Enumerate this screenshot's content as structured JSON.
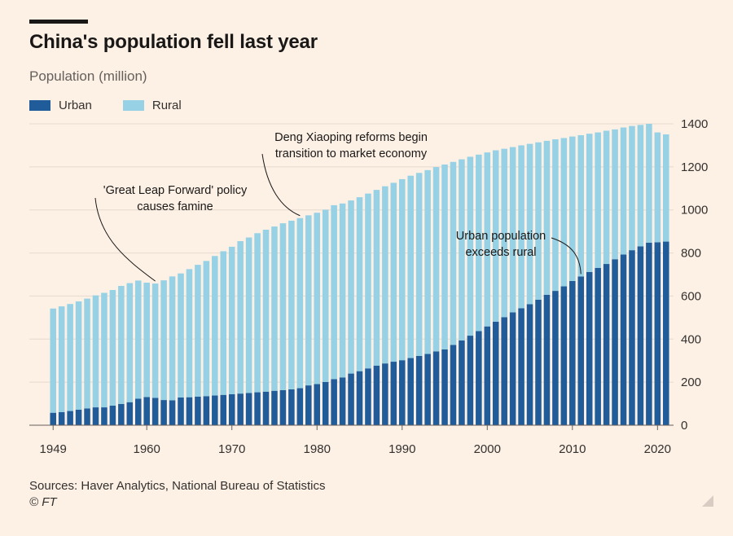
{
  "header": {
    "title": "China's population fell last year",
    "subtitle": "Population (million)"
  },
  "legend": [
    {
      "label": "Urban",
      "color": "#1f5c99"
    },
    {
      "label": "Rural",
      "color": "#96d1e5"
    }
  ],
  "footer": {
    "source": "Sources: Haver Analytics, National Bureau of Statistics",
    "credit": "© FT"
  },
  "colors": {
    "urban": "#1f5c99",
    "rural": "#96d1e5",
    "background": "#fdf1e6",
    "grid": "#e6d9ce"
  },
  "chart_data": {
    "type": "bar",
    "stacked": true,
    "ylim": [
      0,
      1400
    ],
    "y_ticks": [
      0,
      200,
      400,
      600,
      800,
      1000,
      1200,
      1400
    ],
    "x_ticks": [
      1949,
      1960,
      1970,
      1980,
      1990,
      2000,
      2010,
      2020
    ],
    "y_axis_side": "right",
    "grid": true,
    "categories": [
      1949,
      1950,
      1951,
      1952,
      1953,
      1954,
      1955,
      1956,
      1957,
      1958,
      1959,
      1960,
      1961,
      1962,
      1963,
      1964,
      1965,
      1966,
      1967,
      1968,
      1969,
      1970,
      1971,
      1972,
      1973,
      1974,
      1975,
      1976,
      1977,
      1978,
      1979,
      1980,
      1981,
      1982,
      1983,
      1984,
      1985,
      1986,
      1987,
      1988,
      1989,
      1990,
      1991,
      1992,
      1993,
      1994,
      1995,
      1996,
      1997,
      1998,
      1999,
      2000,
      2001,
      2002,
      2003,
      2004,
      2005,
      2006,
      2007,
      2008,
      2009,
      2010,
      2011,
      2012,
      2013,
      2014,
      2015,
      2016,
      2017,
      2018,
      2019,
      2020,
      2021
    ],
    "series": [
      {
        "name": "Urban",
        "values": [
          58,
          61,
          66,
          72,
          78,
          83,
          83,
          91,
          99,
          107,
          123,
          131,
          127,
          117,
          116,
          129,
          130,
          133,
          135,
          138,
          141,
          144,
          147,
          150,
          153,
          156,
          160,
          163,
          167,
          172,
          185,
          191,
          201,
          214,
          222,
          240,
          251,
          264,
          277,
          287,
          295,
          302,
          312,
          322,
          331,
          343,
          352,
          373,
          394,
          416,
          437,
          459,
          481,
          502,
          524,
          543,
          562,
          583,
          606,
          624,
          645,
          670,
          691,
          712,
          731,
          749,
          771,
          793,
          813,
          831,
          848,
          850,
          853
        ]
      },
      {
        "name": "Rural",
        "values": [
          484,
          491,
          497,
          503,
          510,
          520,
          532,
          537,
          548,
          553,
          549,
          531,
          531,
          556,
          575,
          576,
          595,
          612,
          628,
          648,
          667,
          685,
          708,
          722,
          739,
          752,
          763,
          775,
          783,
          790,
          790,
          796,
          800,
          808,
          808,
          804,
          808,
          812,
          816,
          823,
          831,
          841,
          847,
          850,
          854,
          856,
          859,
          850,
          841,
          831,
          820,
          808,
          796,
          782,
          768,
          757,
          745,
          731,
          715,
          704,
          689,
          671,
          656,
          642,
          629,
          619,
          603,
          590,
          577,
          564,
          552,
          510,
          498
        ]
      }
    ],
    "annotations": [
      {
        "lines": [
          "'Great Leap Forward' policy",
          "causes famine"
        ],
        "year": 1961
      },
      {
        "lines": [
          "Deng Xiaoping reforms begin",
          "transition to market economy"
        ],
        "year": 1978
      },
      {
        "lines": [
          "Urban population",
          "exceeds rural"
        ],
        "year": 2011
      }
    ]
  }
}
